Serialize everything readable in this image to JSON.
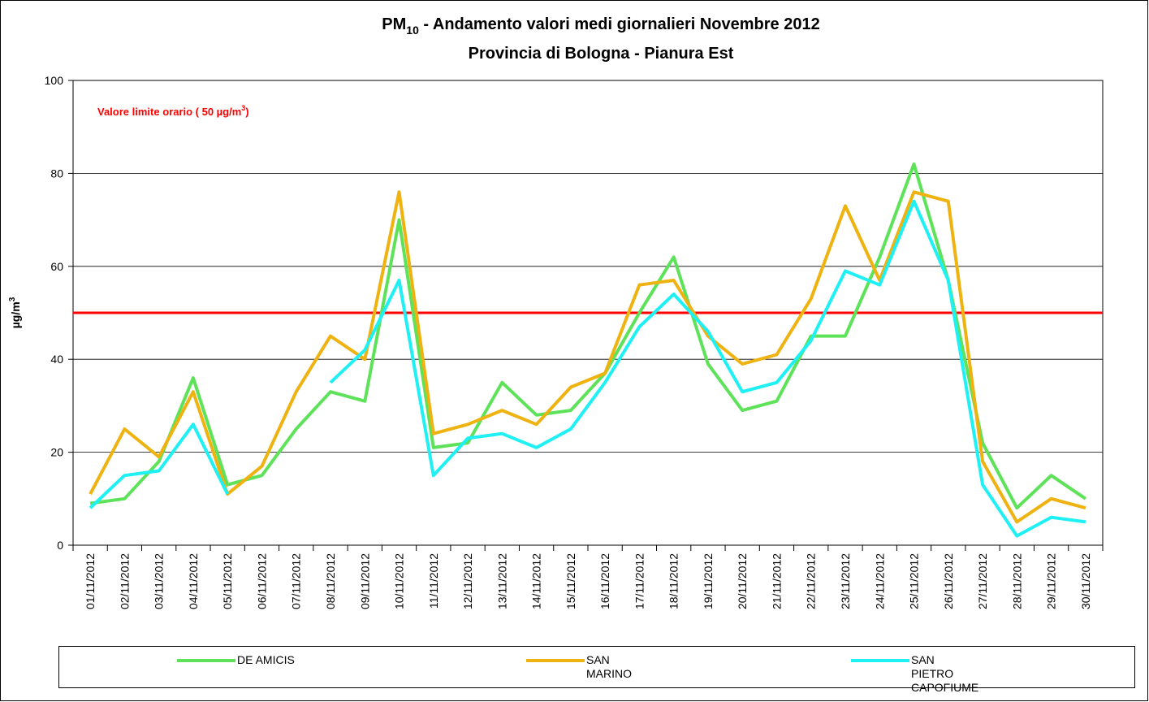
{
  "chart_data": {
    "type": "line",
    "title": {
      "prefix": "PM",
      "subscript": "10",
      "rest": " - Andamento valori medi giornalieri Novembre 2012"
    },
    "subtitle": "Provincia di Bologna - Pianura Est",
    "ylabel": {
      "text": "µg/m",
      "superscript": "3"
    },
    "annotation": {
      "text": "Valore limite orario ( 50 µg/m",
      "superscript": "3",
      "end": ")",
      "color": "#ff0000"
    },
    "limit_line": {
      "value": 50,
      "color": "#ff0000"
    },
    "categories": [
      "01/11/2012",
      "02/11/2012",
      "03/11/2012",
      "04/11/2012",
      "05/11/2012",
      "06/11/2012",
      "07/11/2012",
      "08/11/2012",
      "09/11/2012",
      "10/11/2012",
      "11/11/2012",
      "12/11/2012",
      "13/11/2012",
      "14/11/2012",
      "15/11/2012",
      "16/11/2012",
      "17/11/2012",
      "18/11/2012",
      "19/11/2012",
      "20/11/2012",
      "21/11/2012",
      "22/11/2012",
      "23/11/2012",
      "24/11/2012",
      "25/11/2012",
      "26/11/2012",
      "27/11/2012",
      "28/11/2012",
      "29/11/2012",
      "30/11/2012"
    ],
    "series": [
      {
        "name": "DE AMICIS",
        "color": "#5ee25a",
        "values": [
          9,
          10,
          18,
          36,
          13,
          15,
          25,
          33,
          31,
          70,
          21,
          22,
          35,
          28,
          29,
          37,
          50,
          62,
          39,
          29,
          31,
          45,
          45,
          62,
          82,
          57,
          22,
          8,
          15,
          10
        ]
      },
      {
        "name": "SAN MARINO",
        "color": "#eeb311",
        "values": [
          11,
          25,
          19,
          33,
          11,
          17,
          33,
          45,
          40,
          76,
          24,
          26,
          29,
          26,
          34,
          37,
          56,
          57,
          45,
          39,
          41,
          53,
          73,
          57,
          76,
          74,
          18,
          5,
          10,
          8
        ]
      },
      {
        "name": "SAN PIETRO CAPOFIUME",
        "color": "#1ef0f4",
        "values": [
          8,
          15,
          16,
          26,
          11,
          null,
          null,
          35,
          42,
          57,
          15,
          23,
          24,
          21,
          25,
          35,
          47,
          54,
          46,
          33,
          35,
          44,
          59,
          56,
          74,
          57,
          13,
          2,
          6,
          5
        ]
      }
    ],
    "ylim": [
      0,
      100
    ],
    "yticks": [
      0,
      20,
      40,
      60,
      80,
      100
    ],
    "grid": true,
    "legend": "bottom"
  }
}
